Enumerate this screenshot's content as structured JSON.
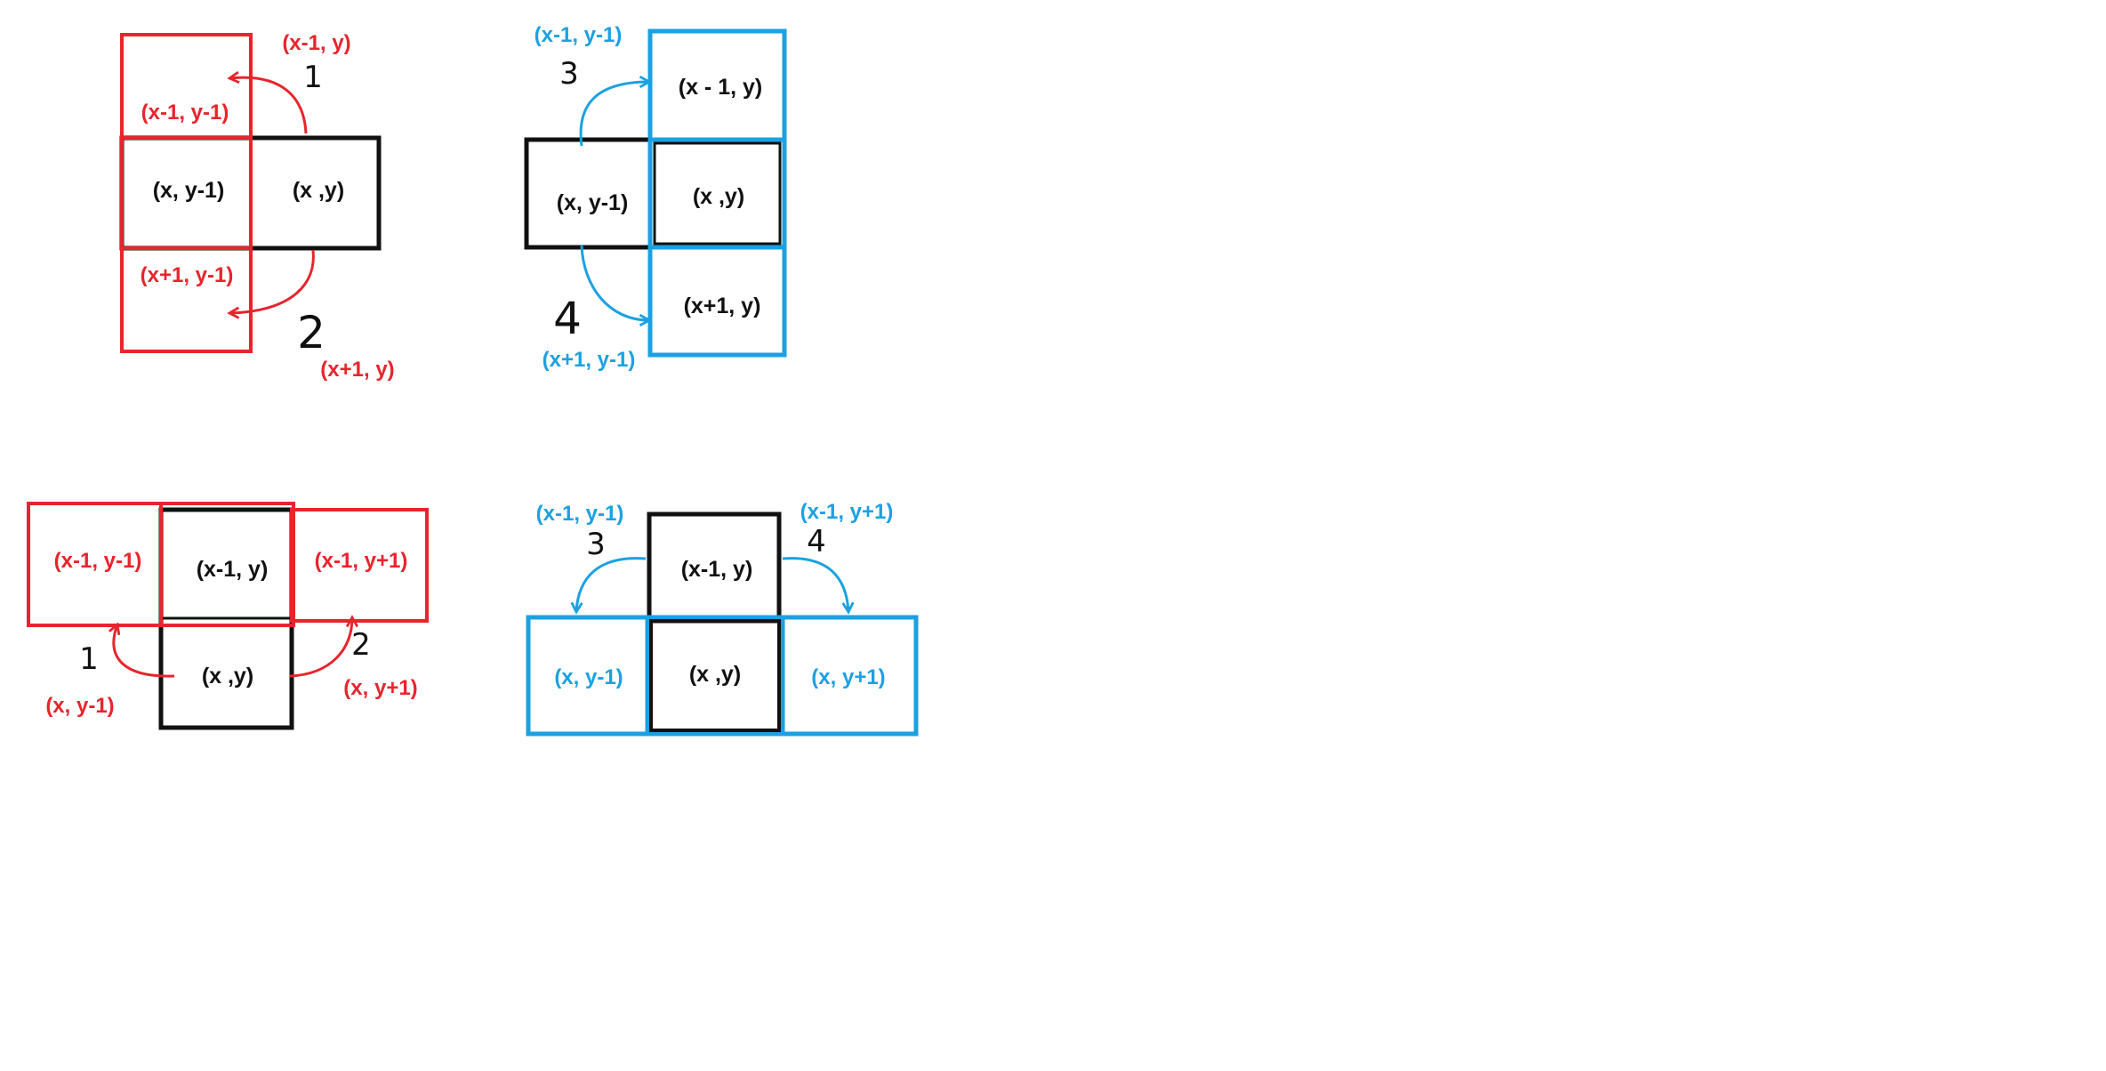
{
  "colors": {
    "black": "#111111",
    "red": "#e8242c",
    "blue": "#1ba1e2",
    "background": "#ffffff"
  },
  "diagram1": {
    "center_left": "(x, y-1)",
    "center_right": "(x ,y)",
    "top_red": "(x-1, y-1)",
    "bottom_red": "(x+1, y-1)",
    "top_target": "(x-1, y)",
    "bottom_target": "(x+1, y)",
    "step_top": "1",
    "step_bottom": "2"
  },
  "diagram2": {
    "left_black": "(x, y-1)",
    "center": "(x ,y)",
    "top_blue": "(x - 1, y)",
    "bottom_blue": "(x+1, y)",
    "top_source": "(x-1, y-1)",
    "bottom_source": "(x+1, y-1)",
    "step_top": "3",
    "step_bottom": "4"
  },
  "diagram3": {
    "top_center": "(x-1, y)",
    "bottom_center": "(x ,y)",
    "left_red": "(x-1, y-1)",
    "right_red": "(x-1, y+1)",
    "left_target": "(x, y-1)",
    "right_target": "(x, y+1)",
    "step_left": "1",
    "step_right": "2"
  },
  "diagram4": {
    "top_black": "(x-1, y)",
    "center": "(x ,y)",
    "left_blue": "(x, y-1)",
    "right_blue": "(x, y+1)",
    "left_source": "(x-1, y-1)",
    "right_source": "(x-1, y+1)",
    "step_left": "3",
    "step_right": "4"
  }
}
